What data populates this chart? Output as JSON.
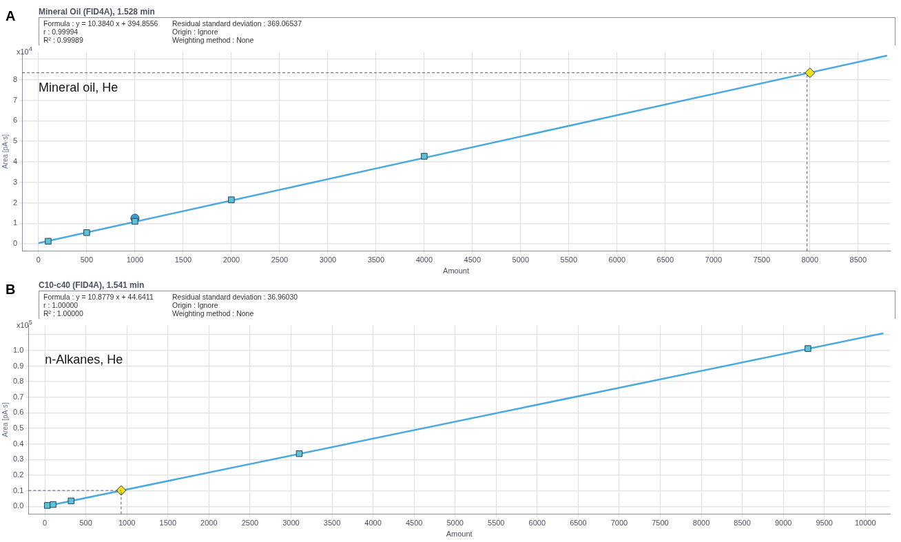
{
  "chart_data": [
    {
      "type": "scatter",
      "title": "Mineral Oil (FID4A), 1.528 min",
      "xlabel": "Amount",
      "ylabel": "Area [pA·s]",
      "annotations": [
        "A",
        "Formula : y = 10.3840 x + 394.8556",
        "r : 0.99994",
        "R² : 0.99989",
        "Residual standard deviation : 369.06537",
        "Origin : Ignore",
        "Weighting method : None",
        "x10$^{4}$",
        "Mineral oil, He"
      ],
      "xlim": [
        -170,
        8830
      ],
      "xticks": [
        0,
        500,
        1000,
        1500,
        2000,
        2500,
        3000,
        3500,
        4000,
        4500,
        5000,
        5500,
        6000,
        6500,
        7000,
        7500,
        8000,
        8500
      ],
      "ylim": [
        -0.35,
        9.35
      ],
      "yticks": [
        0,
        1,
        2,
        3,
        4,
        5,
        6,
        7,
        8,
        {
          "value": 9,
          "label": null
        }
      ],
      "grid": true,
      "ref_lines": [
        {
          "axis": "y",
          "value": 8.34,
          "color": "#555a70",
          "line_style": "dashed"
        },
        {
          "axis": "x",
          "value": 7970,
          "color": "#555a70",
          "line_style": "dashed"
        }
      ],
      "series": [
        {
          "type": "line",
          "x": [
            0,
            8800
          ],
          "values": [
            0.04,
            9.18
          ],
          "color": "#4aa8e0",
          "marker": "none",
          "line_style": "solid"
        },
        {
          "x": [
            100,
            500,
            1000,
            2000,
            4000
          ],
          "values": [
            0.13,
            0.55,
            1.1,
            2.15,
            4.27
          ],
          "color": "#5bc3d8",
          "marker": "square"
        },
        {
          "x": [
            1000
          ],
          "values": [
            1.25
          ],
          "color": "#3aa0d0",
          "marker": "circle"
        },
        {
          "x": [
            8000
          ],
          "values": [
            8.34
          ],
          "color": "#f0e020",
          "marker": "diamond"
        }
      ]
    },
    {
      "type": "scatter",
      "title": "C10-c40 (FID4A), 1.541 min",
      "xlabel": "Amount",
      "ylabel": "Area [pA·s]",
      "annotations": [
        "B",
        "Formula : y = 10.8779 x + 44.6411",
        "r : 1.00000",
        "R² : 1.00000",
        "Residual standard deviation : 36.96030",
        "Origin : Ignore",
        "Weighting method : None",
        "x10$^{5}$",
        "n-Alkanes, He"
      ],
      "xlim": [
        -200,
        10300
      ],
      "xticks": [
        0,
        500,
        1000,
        1500,
        2000,
        2500,
        3000,
        3500,
        4000,
        4500,
        5000,
        5500,
        6000,
        6500,
        7000,
        7500,
        8000,
        8500,
        9000,
        9500,
        10000
      ],
      "ylim": [
        -0.05,
        1.16
      ],
      "yticks": [
        {
          "value": 0,
          "label": "0.0"
        },
        0.1,
        0.2,
        0.3,
        0.4,
        0.5,
        0.6,
        0.7,
        0.8,
        0.9,
        {
          "value": 1,
          "label": "1.0"
        },
        {
          "value": 1.1,
          "label": null
        }
      ],
      "grid": true,
      "ref_lines": [
        {
          "axis": "y",
          "value": 0.102,
          "color": "#555a70",
          "line_style": "dashed"
        },
        {
          "axis": "x",
          "value": 930,
          "color": "#555a70",
          "line_style": "dashed"
        }
      ],
      "series": [
        {
          "type": "line",
          "x": [
            0,
            10220
          ],
          "values": [
            0,
            1.11
          ],
          "color": "#4aa8e0",
          "marker": "none",
          "line_style": "solid"
        },
        {
          "x": [
            30,
            100,
            320,
            3100,
            9300
          ],
          "values": [
            0.006,
            0.012,
            0.035,
            0.338,
            1.012
          ],
          "color": "#5bc3d8",
          "marker": "square"
        },
        {
          "x": [
            930
          ],
          "values": [
            0.102
          ],
          "color": "#f0e020",
          "marker": "diamond"
        }
      ]
    }
  ]
}
